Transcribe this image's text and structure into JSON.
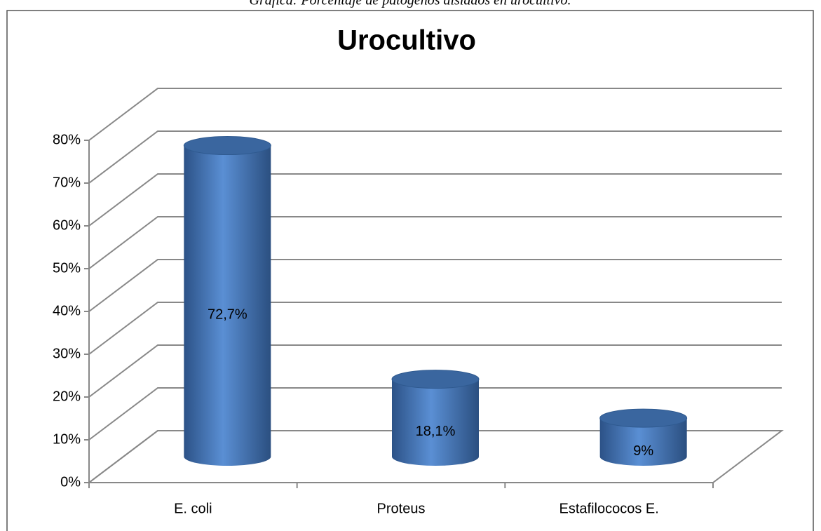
{
  "caption": "Gráfica: Porcentaje de patógenos aislados en urocultivo.",
  "chart_data": {
    "type": "bar3d",
    "title": "Urocultivo",
    "categories": [
      "E. coli",
      "Proteus",
      "Estafilococos E."
    ],
    "values": [
      72.7,
      18.1,
      9
    ],
    "value_labels": [
      "72,7%",
      "18,1%",
      "9%"
    ],
    "color": "#4f81bd",
    "ylim": [
      0,
      80
    ],
    "yticks": [
      {
        "value": 0,
        "label": "0%"
      },
      {
        "value": 10,
        "label": "10%"
      },
      {
        "value": 20,
        "label": "20%"
      },
      {
        "value": 30,
        "label": "30%"
      },
      {
        "value": 40,
        "label": "40%"
      },
      {
        "value": 50,
        "label": "50%"
      },
      {
        "value": 60,
        "label": "60%"
      },
      {
        "value": 70,
        "label": "70%"
      },
      {
        "value": 80,
        "label": "80%"
      }
    ],
    "grid": true
  }
}
